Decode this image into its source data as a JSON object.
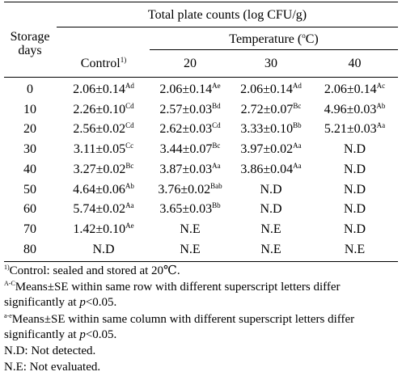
{
  "table": {
    "header": {
      "row_label": "Storage days",
      "group_title": "Total plate counts (log CFU/g)",
      "temperature_title": "Temperature (",
      "temperature_unit": "o",
      "temperature_suffix": "C)",
      "control_label": "Control",
      "control_sup": "1)",
      "temps": [
        "20",
        "30",
        "40"
      ]
    },
    "rows": [
      {
        "day": "0",
        "cells": [
          {
            "v": "2.06±0.14",
            "s": "Ad"
          },
          {
            "v": "2.06±0.14",
            "s": "Ae"
          },
          {
            "v": "2.06±0.14",
            "s": "Ad"
          },
          {
            "v": "2.06±0.14",
            "s": "Ac"
          }
        ]
      },
      {
        "day": "10",
        "cells": [
          {
            "v": "2.26±0.10",
            "s": "Cd"
          },
          {
            "v": "2.57±0.03",
            "s": "Bd"
          },
          {
            "v": "2.72±0.07",
            "s": "Bc"
          },
          {
            "v": "4.96±0.03",
            "s": "Ab"
          }
        ]
      },
      {
        "day": "20",
        "cells": [
          {
            "v": "2.56±0.02",
            "s": "Cd"
          },
          {
            "v": "2.62±0.03",
            "s": "Cd"
          },
          {
            "v": "3.33±0.10",
            "s": "Bb"
          },
          {
            "v": "5.21±0.03",
            "s": "Aa"
          }
        ]
      },
      {
        "day": "30",
        "cells": [
          {
            "v": "3.11±0.05",
            "s": "Cc"
          },
          {
            "v": "3.44±0.07",
            "s": "Bc"
          },
          {
            "v": "3.97±0.02",
            "s": "Aa"
          },
          {
            "v": "N.D",
            "s": ""
          }
        ]
      },
      {
        "day": "40",
        "cells": [
          {
            "v": "3.27±0.02",
            "s": "Bc"
          },
          {
            "v": "3.87±0.03",
            "s": "Aa"
          },
          {
            "v": "3.86±0.04",
            "s": "Aa"
          },
          {
            "v": "N.D",
            "s": ""
          }
        ]
      },
      {
        "day": "50",
        "cells": [
          {
            "v": "4.64±0.06",
            "s": "Ab"
          },
          {
            "v": "3.76±0.02",
            "s": "Bab"
          },
          {
            "v": "N.D",
            "s": ""
          },
          {
            "v": "N.D",
            "s": ""
          }
        ]
      },
      {
        "day": "60",
        "cells": [
          {
            "v": "5.74±0.02",
            "s": "Aa"
          },
          {
            "v": "3.65±0.03",
            "s": "Bb"
          },
          {
            "v": "N.D",
            "s": ""
          },
          {
            "v": "N.D",
            "s": ""
          }
        ]
      },
      {
        "day": "70",
        "cells": [
          {
            "v": "1.42±0.10",
            "s": "Ae"
          },
          {
            "v": "N.E",
            "s": ""
          },
          {
            "v": "N.E",
            "s": ""
          },
          {
            "v": "N.D",
            "s": ""
          }
        ]
      },
      {
        "day": "80",
        "cells": [
          {
            "v": "N.D",
            "s": ""
          },
          {
            "v": "N.E",
            "s": ""
          },
          {
            "v": "N.E",
            "s": ""
          },
          {
            "v": "N.E",
            "s": ""
          }
        ]
      }
    ]
  },
  "footnotes": {
    "f1_sup": "1)",
    "f1_text": "Control: sealed and stored at 20℃.",
    "f2_sup": "A-C",
    "f2_line1": "Means±SE within same row with different superscript letters differ",
    "f2_line2a": "significantly at ",
    "f2_p": "p",
    "f2_line2b": "<0.05.",
    "f3_sup": "a-e",
    "f3_line1": "Means±SE within same column with different superscript letters differ",
    "f3_line2a": "significantly at ",
    "f3_p": "p",
    "f3_line2b": "<0.05.",
    "f4": "N.D: Not detected.",
    "f5": "N.E: Not evaluated."
  }
}
